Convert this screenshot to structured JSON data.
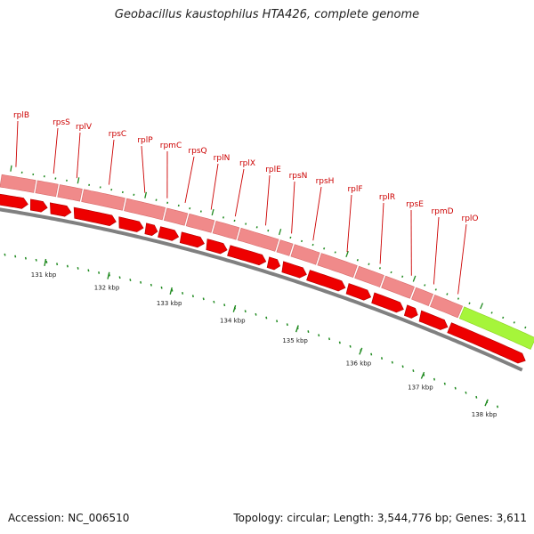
{
  "title": "Geobacillus kaustophilus HTA426, complete genome",
  "footer": {
    "accession": "Accession: NC_006510",
    "stats": "Topology: circular; Length: 3,544,776 bp; Genes: 3,611"
  },
  "genes": [
    "rplB",
    "rpsS",
    "rplV",
    "rpsC",
    "rplP",
    "rpmC",
    "rpsQ",
    "rplN",
    "rplX",
    "rplE",
    "rpsN",
    "rpsH",
    "rplF",
    "rplR",
    "rpsE",
    "rpmD",
    "rplO"
  ],
  "scale_labels": [
    "131 kbp",
    "132 kbp",
    "133 kbp",
    "134 kbp",
    "135 kbp",
    "136 kbp",
    "137 kbp",
    "138 kbp"
  ],
  "colors": {
    "gene_label": "#cc0000",
    "upper_track": "#f08a8a",
    "lower_track": "#ee0000",
    "highlight_track": "#a6f53a",
    "backbone": "#808080",
    "tick": "#1f8a1f"
  }
}
